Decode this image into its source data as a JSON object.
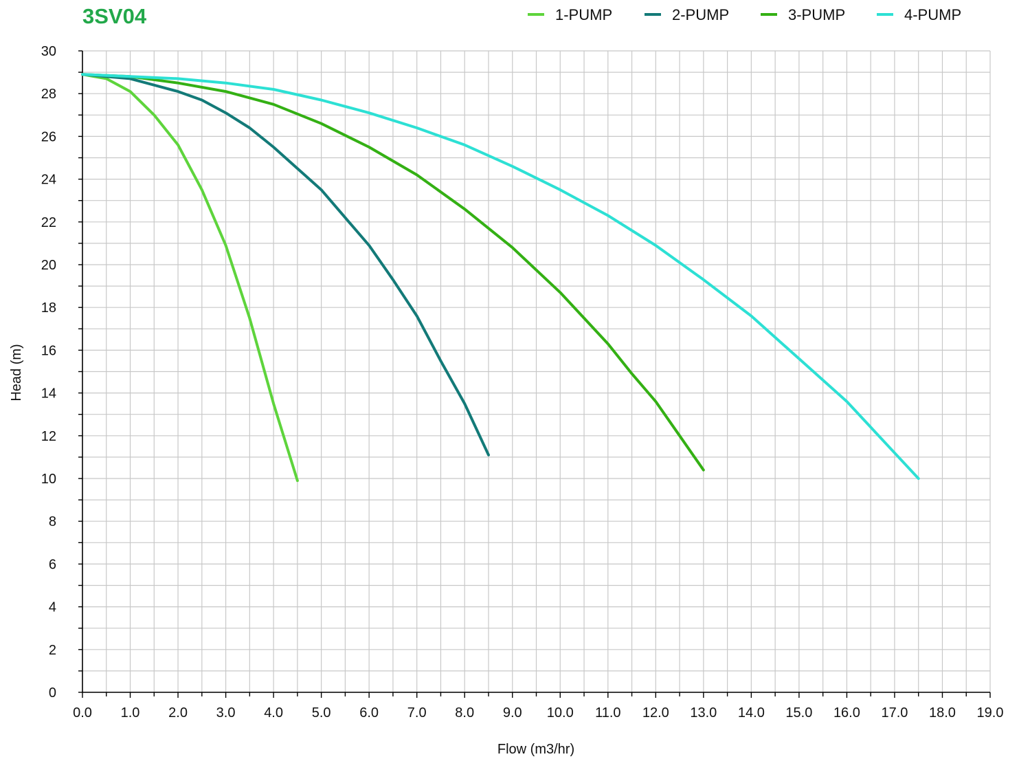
{
  "chart_data": {
    "type": "line",
    "title": "3SV04",
    "xlabel": "Flow (m3/hr)",
    "ylabel": "Head (m)",
    "xlim": [
      0,
      19
    ],
    "ylim": [
      0,
      30
    ],
    "x_ticks": [
      "0.0",
      "1.0",
      "2.0",
      "3.0",
      "4.0",
      "5.0",
      "6.0",
      "7.0",
      "8.0",
      "9.0",
      "10.0",
      "11.0",
      "12.0",
      "13.0",
      "14.0",
      "15.0",
      "16.0",
      "17.0",
      "18.0",
      "19.0"
    ],
    "y_ticks": [
      "0",
      "2",
      "4",
      "6",
      "8",
      "10",
      "12",
      "14",
      "16",
      "18",
      "20",
      "22",
      "24",
      "26",
      "28",
      "30"
    ],
    "x_minor_step": 0.5,
    "y_minor_step": 1,
    "grid": true,
    "legend_position": "top-right",
    "colors": {
      "title": "#22a84a",
      "axis": "#000000",
      "grid": "#c8c8c8"
    },
    "series": [
      {
        "name": "1-PUMP",
        "color": "#5ed43c",
        "x": [
          0,
          0.5,
          1.0,
          1.5,
          2.0,
          2.5,
          3.0,
          3.5,
          4.0,
          4.5
        ],
        "y": [
          28.9,
          28.7,
          28.1,
          27.0,
          25.6,
          23.5,
          20.9,
          17.5,
          13.5,
          9.9
        ]
      },
      {
        "name": "2-PUMP",
        "color": "#137a78",
        "x": [
          0,
          1.0,
          2.0,
          2.5,
          3.0,
          3.5,
          4.0,
          4.5,
          5.0,
          5.5,
          6.0,
          6.5,
          7.0,
          7.5,
          8.0,
          8.5
        ],
        "y": [
          28.9,
          28.7,
          28.1,
          27.7,
          27.1,
          26.4,
          25.5,
          24.5,
          23.5,
          22.2,
          20.9,
          19.3,
          17.6,
          15.5,
          13.5,
          11.1
        ]
      },
      {
        "name": "3-PUMP",
        "color": "#34b014",
        "x": [
          0,
          1.0,
          2.0,
          3.0,
          4.0,
          5.0,
          6.0,
          7.0,
          8.0,
          9.0,
          10.0,
          11.0,
          11.5,
          12.0,
          12.5,
          13.0
        ],
        "y": [
          28.9,
          28.8,
          28.5,
          28.1,
          27.5,
          26.6,
          25.5,
          24.2,
          22.6,
          20.8,
          18.7,
          16.3,
          14.9,
          13.6,
          12.0,
          10.4
        ]
      },
      {
        "name": "4-PUMP",
        "color": "#2de0d4",
        "x": [
          0,
          1.0,
          2.0,
          3.0,
          4.0,
          5.0,
          6.0,
          7.0,
          8.0,
          9.0,
          10.0,
          11.0,
          12.0,
          13.0,
          14.0,
          15.0,
          16.0,
          17.0,
          17.5
        ],
        "y": [
          28.9,
          28.8,
          28.7,
          28.5,
          28.2,
          27.7,
          27.1,
          26.4,
          25.6,
          24.6,
          23.5,
          22.3,
          20.9,
          19.3,
          17.6,
          15.6,
          13.6,
          11.2,
          10.0
        ]
      }
    ]
  }
}
